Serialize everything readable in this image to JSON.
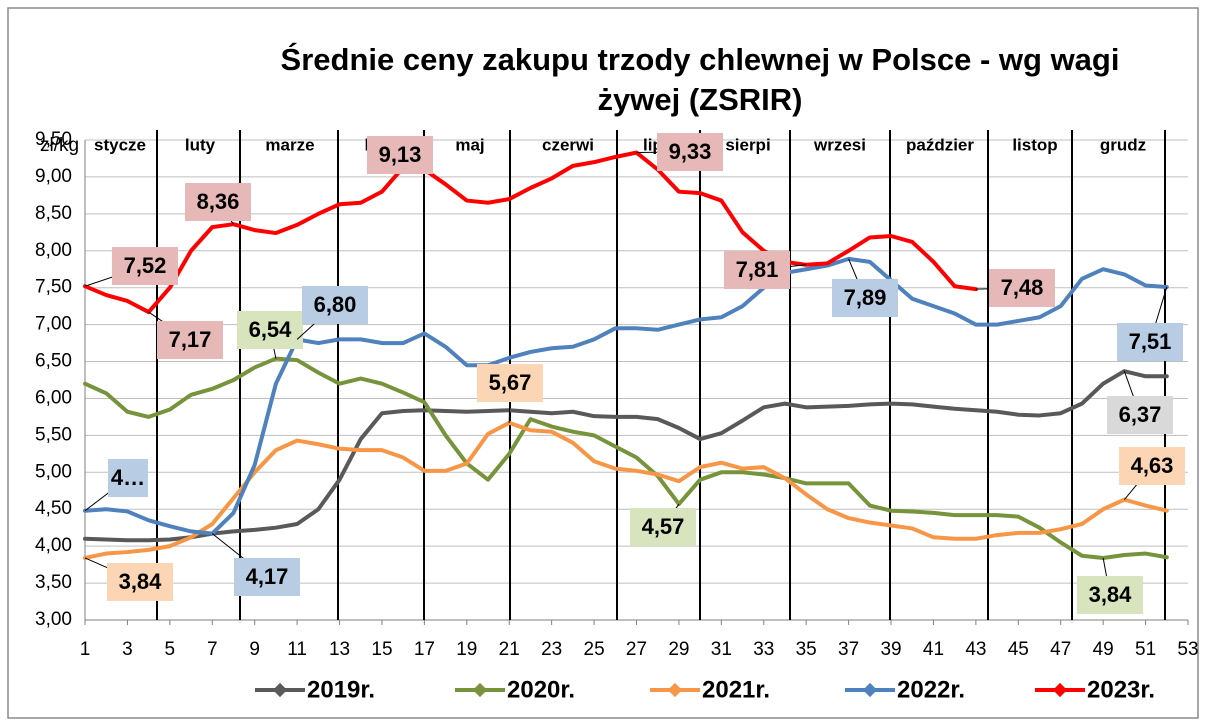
{
  "chart_data": {
    "type": "line",
    "title": "Średnie ceny zakupu trzody chlewnej w Polsce - wg wagi żywej (ZSRIR)",
    "y_label": "zł/kg",
    "months": [
      "stycze",
      "luty",
      "marze",
      "kwieci",
      "maj",
      "czerwi",
      "lipie",
      "sierpi",
      "wrzesi",
      "paździer",
      "listop",
      "grudz"
    ],
    "x": [
      1,
      2,
      3,
      4,
      5,
      6,
      7,
      8,
      9,
      10,
      11,
      12,
      13,
      14,
      15,
      16,
      17,
      18,
      19,
      20,
      21,
      22,
      23,
      24,
      25,
      26,
      27,
      28,
      29,
      30,
      31,
      32,
      33,
      34,
      35,
      36,
      37,
      38,
      39,
      40,
      41,
      42,
      43,
      44,
      45,
      46,
      47,
      48,
      49,
      50,
      51,
      52
    ],
    "xlim": [
      1,
      53
    ],
    "xticks": [
      1,
      3,
      5,
      7,
      9,
      11,
      13,
      15,
      17,
      19,
      21,
      23,
      25,
      27,
      29,
      31,
      33,
      35,
      37,
      39,
      41,
      43,
      45,
      47,
      49,
      51,
      53
    ],
    "ylim": [
      3,
      9.5
    ],
    "yticks": [
      {
        "value": 3,
        "label": "3,00"
      },
      {
        "value": 3.5,
        "label": "3,50"
      },
      {
        "value": 4,
        "label": "4,00"
      },
      {
        "value": 4.5,
        "label": "4,50"
      },
      {
        "value": 5,
        "label": "5,00"
      },
      {
        "value": 5.5,
        "label": "5,50"
      },
      {
        "value": 6,
        "label": "6,00"
      },
      {
        "value": 6.5,
        "label": "6,50"
      },
      {
        "value": 7,
        "label": "7,00"
      },
      {
        "value": 7.5,
        "label": "7,50"
      },
      {
        "value": 8,
        "label": "8,00"
      },
      {
        "value": 8.5,
        "label": "8,50"
      },
      {
        "value": 9,
        "label": "9,00"
      },
      {
        "value": 9.5,
        "label": "9,50"
      }
    ],
    "grid": true,
    "legend": "bottom",
    "series": [
      {
        "name": "2019r.",
        "color": "#595959",
        "label_bg": "#d9d9d9",
        "values": [
          4.1,
          4.09,
          4.08,
          4.08,
          4.09,
          4.12,
          4.17,
          4.2,
          4.22,
          4.25,
          4.3,
          4.5,
          4.9,
          5.45,
          5.8,
          5.83,
          5.84,
          5.83,
          5.82,
          5.83,
          5.84,
          5.82,
          5.8,
          5.82,
          5.76,
          5.75,
          5.75,
          5.72,
          5.6,
          5.45,
          5.53,
          5.7,
          5.88,
          5.93,
          5.88,
          5.89,
          5.9,
          5.92,
          5.93,
          5.92,
          5.89,
          5.86,
          5.84,
          5.82,
          5.78,
          5.77,
          5.8,
          5.93,
          6.2,
          6.37,
          6.3,
          6.3
        ],
        "value_labels": [
          null,
          null,
          null,
          null,
          null,
          null,
          null,
          null,
          null,
          null,
          null,
          null,
          null,
          null,
          null,
          null,
          null,
          null,
          null,
          null,
          null,
          null,
          null,
          null,
          null,
          null,
          null,
          null,
          null,
          null,
          null,
          null,
          null,
          null,
          null,
          null,
          null,
          null,
          null,
          null,
          null,
          null,
          null,
          null,
          null,
          null,
          null,
          null,
          null,
          "6,37",
          null,
          null
        ]
      },
      {
        "name": "2020r.",
        "color": "#77933c",
        "label_bg": "#d7e4bd",
        "values": [
          6.2,
          6.07,
          5.82,
          5.75,
          5.85,
          6.05,
          6.13,
          6.25,
          6.42,
          6.54,
          6.52,
          6.35,
          6.2,
          6.27,
          6.2,
          6.08,
          5.95,
          5.5,
          5.12,
          4.9,
          5.25,
          5.72,
          5.62,
          5.55,
          5.5,
          5.35,
          5.2,
          4.95,
          4.57,
          4.9,
          5.0,
          5.0,
          4.97,
          4.92,
          4.85,
          4.85,
          4.85,
          4.55,
          4.48,
          4.47,
          4.45,
          4.42,
          4.42,
          4.42,
          4.4,
          4.25,
          4.05,
          3.87,
          3.84,
          3.88,
          3.9,
          3.85
        ],
        "value_labels": [
          null,
          null,
          null,
          null,
          null,
          null,
          null,
          null,
          null,
          "6,54",
          null,
          null,
          null,
          null,
          null,
          null,
          null,
          null,
          null,
          null,
          null,
          null,
          null,
          null,
          null,
          null,
          null,
          null,
          "4,57",
          null,
          null,
          null,
          null,
          null,
          null,
          null,
          null,
          null,
          null,
          null,
          null,
          null,
          null,
          null,
          null,
          null,
          null,
          null,
          "3,84",
          null,
          null,
          null
        ]
      },
      {
        "name": "2021r.",
        "color": "#f79646",
        "label_bg": "#fcd5b5",
        "values": [
          3.84,
          3.9,
          3.92,
          3.95,
          4.0,
          4.12,
          4.3,
          4.65,
          5.0,
          5.3,
          5.43,
          5.38,
          5.32,
          5.3,
          5.3,
          5.2,
          5.02,
          5.02,
          5.12,
          5.52,
          5.67,
          5.57,
          5.55,
          5.4,
          5.15,
          5.05,
          5.02,
          4.97,
          4.88,
          5.07,
          5.13,
          5.05,
          5.07,
          4.92,
          4.7,
          4.5,
          4.38,
          4.32,
          4.28,
          4.24,
          4.12,
          4.1,
          4.1,
          4.15,
          4.18,
          4.18,
          4.23,
          4.3,
          4.5,
          4.63,
          4.55,
          4.48
        ],
        "value_labels": [
          "3,84",
          null,
          null,
          null,
          null,
          null,
          null,
          null,
          null,
          null,
          null,
          null,
          null,
          null,
          null,
          null,
          null,
          null,
          null,
          null,
          "5,67",
          null,
          null,
          null,
          null,
          null,
          null,
          null,
          null,
          null,
          null,
          null,
          null,
          null,
          null,
          null,
          null,
          null,
          null,
          null,
          null,
          null,
          null,
          null,
          null,
          null,
          null,
          null,
          null,
          "4,63",
          null,
          null
        ]
      },
      {
        "name": "2022r.",
        "color": "#4f81bd",
        "label_bg": "#b8cce4",
        "values": [
          4.48,
          4.5,
          4.47,
          4.35,
          4.27,
          4.2,
          4.17,
          4.45,
          5.1,
          6.2,
          6.8,
          6.75,
          6.8,
          6.8,
          6.75,
          6.75,
          6.88,
          6.7,
          6.45,
          6.45,
          6.55,
          6.63,
          6.68,
          6.7,
          6.8,
          6.95,
          6.95,
          6.93,
          7.0,
          7.07,
          7.1,
          7.25,
          7.5,
          7.7,
          7.75,
          7.8,
          7.89,
          7.85,
          7.6,
          7.35,
          7.25,
          7.15,
          7.0,
          7.0,
          7.05,
          7.1,
          7.25,
          7.62,
          7.75,
          7.68,
          7.53,
          7.51
        ],
        "value_labels": [
          "4…",
          null,
          null,
          null,
          null,
          null,
          "4,17",
          null,
          null,
          null,
          "6,80",
          null,
          null,
          null,
          null,
          null,
          null,
          null,
          null,
          null,
          null,
          null,
          null,
          null,
          null,
          null,
          null,
          null,
          null,
          null,
          null,
          null,
          null,
          null,
          null,
          null,
          "7,89",
          null,
          null,
          null,
          null,
          null,
          null,
          null,
          null,
          null,
          null,
          null,
          null,
          null,
          null,
          "7,51"
        ]
      },
      {
        "name": "2023r.",
        "color": "#ff0000",
        "label_bg": "#e6b8b7",
        "values": [
          7.52,
          7.4,
          7.32,
          7.17,
          7.5,
          8.0,
          8.32,
          8.36,
          8.28,
          8.24,
          8.35,
          8.5,
          8.63,
          8.65,
          8.8,
          9.13,
          9.1,
          8.9,
          8.68,
          8.65,
          8.7,
          8.85,
          8.98,
          9.15,
          9.2,
          9.27,
          9.33,
          9.1,
          8.8,
          8.78,
          8.68,
          8.25,
          8.0,
          7.85,
          7.81,
          7.83,
          8.0,
          8.18,
          8.2,
          8.12,
          7.85,
          7.52,
          7.48,
          null,
          null,
          null,
          null,
          null,
          null,
          null,
          null,
          null
        ],
        "value_labels": [
          "7,52",
          null,
          null,
          "7,17",
          null,
          null,
          null,
          "8,36",
          null,
          null,
          null,
          null,
          null,
          null,
          null,
          "9,13",
          null,
          null,
          null,
          null,
          null,
          null,
          null,
          null,
          null,
          null,
          "9,33",
          null,
          null,
          null,
          null,
          null,
          null,
          null,
          "7,81",
          null,
          null,
          null,
          null,
          null,
          null,
          null,
          "7,48",
          null,
          null,
          null,
          null,
          null,
          null,
          null,
          null,
          null
        ]
      }
    ]
  }
}
